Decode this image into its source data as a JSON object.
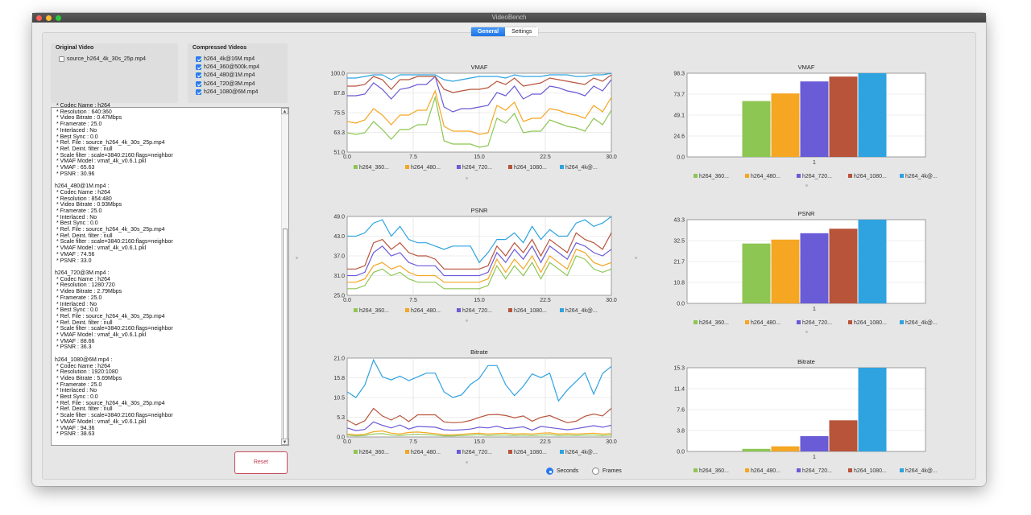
{
  "window": {
    "title": "VideoBench"
  },
  "tabs": [
    {
      "label": "General"
    },
    {
      "label": "Settings"
    }
  ],
  "original_video": {
    "title": "Original Video",
    "item": "source_h264_4k_30s_25p.mp4"
  },
  "compressed_videos": {
    "title": "Compressed Videos",
    "items": [
      {
        "label": "h264_4k@16M.mp4",
        "checked": true
      },
      {
        "label": "h264_360@500k.mp4",
        "checked": true
      },
      {
        "label": "h264_480@1M.mp4",
        "checked": true
      },
      {
        "label": "h264_720@3M.mp4",
        "checked": true
      },
      {
        "label": "h264_1080@6M.mp4",
        "checked": true
      }
    ]
  },
  "log": {
    "text": " * Codec Name : h264\n * Resolution : 640:360\n * Video Bitrate : 0.47Mbps\n * Framerate : 25.0\n * Interlaced : No\n * Best Sync : 0.0\n * Ref. File : source_h264_4k_30s_25p.mp4\n * Ref. Deint. filter : null\n * Scale filter : scale=3840:2160:flags=neighbor\n * VMAF Model : vmaf_4k_v0.6.1.pkl\n * VMAF : 65.63\n * PSNR : 30.96\n\nh264_480@1M.mp4 :\n * Codec Name : h264\n * Resolution : 854:480\n * Video Bitrate : 0.93Mbps\n * Framerate : 25.0\n * Interlaced : No\n * Best Sync : 0.0\n * Ref. File : source_h264_4k_30s_25p.mp4\n * Ref. Deint. filter : null\n * Scale filter : scale=3840:2160:flags=neighbor\n * VMAF Model : vmaf_4k_v0.6.1.pkl\n * VMAF : 74.56\n * PSNR : 33.0\n\nh264_720@3M.mp4 :\n * Codec Name : h264\n * Resolution : 1280:720\n * Video Bitrate : 2.79Mbps\n * Framerate : 25.0\n * Interlaced : No\n * Best Sync : 0.0\n * Ref. File : source_h264_4k_30s_25p.mp4\n * Ref. Deint. filter : null\n * Scale filter : scale=3840:2160:flags=neighbor\n * VMAF Model : vmaf_4k_v0.6.1.pkl\n * VMAF : 88.66\n * PSNR : 36.3\n\nh264_1080@6M.mp4 :\n * Codec Name : h264\n * Resolution : 1920:1080\n * Video Bitrate : 5.69Mbps\n * Framerate : 25.0\n * Interlaced : No\n * Best Sync : 0.0\n * Ref. File : source_h264_4k_30s_25p.mp4\n * Ref. Deint. filter : null\n * Scale filter : scale=3840:2160:flags=neighbor\n * VMAF Model : vmaf_4k_v0.6.1.pkl\n * VMAF : 94.36\n * PSNR : 38.63"
  },
  "reset_label": "Reset",
  "xaxis_mode": {
    "options": [
      {
        "label": "Seconds",
        "selected": true
      },
      {
        "label": "Frames",
        "selected": false
      }
    ]
  },
  "colors": {
    "h264_360": "#8dc652",
    "h264_480": "#f5a623",
    "h264_720": "#6a5bd6",
    "h264_1080": "#b8543a",
    "h264_4k": "#2ea3e0"
  },
  "legend": [
    "h264_360...",
    "h264_480...",
    "h264_720...",
    "h264_1080...",
    "h264_4k@..."
  ],
  "chart_data": [
    {
      "type": "line",
      "title": "VMAF",
      "x": [
        0,
        1,
        2,
        3,
        4,
        5,
        6,
        7,
        8,
        9,
        10,
        11,
        12,
        13,
        14,
        15,
        16,
        17,
        18,
        19,
        20,
        21,
        22,
        23,
        24,
        25,
        26,
        27,
        28,
        29,
        30
      ],
      "xticks": [
        "0.0",
        "7.5",
        "15.0",
        "22.5",
        "30.0"
      ],
      "yticks": [
        "51.0",
        "63.3",
        "75.5",
        "87.8",
        "100.0"
      ],
      "ylim": [
        51,
        100
      ],
      "series": [
        {
          "key": "h264_360",
          "values": [
            63,
            62,
            63,
            70,
            65,
            59,
            65,
            65,
            68,
            68,
            85,
            58,
            56,
            56,
            56,
            54,
            55,
            72,
            69,
            75,
            63,
            64,
            64,
            71,
            69,
            67,
            66,
            64,
            72,
            68,
            77
          ]
        },
        {
          "key": "h264_480",
          "values": [
            70,
            69,
            71,
            78,
            74,
            68,
            74,
            74,
            77,
            77,
            89,
            67,
            64,
            64,
            64,
            62,
            63,
            80,
            77,
            82,
            70,
            72,
            72,
            78,
            77,
            75,
            74,
            72,
            80,
            76,
            85
          ]
        },
        {
          "key": "h264_720",
          "values": [
            86,
            86,
            87,
            94,
            90,
            84,
            90,
            91,
            93,
            93,
            98,
            79,
            76,
            78,
            78,
            79,
            80,
            88,
            86,
            92,
            84,
            87,
            87,
            92,
            91,
            89,
            88,
            86,
            92,
            89,
            96
          ]
        },
        {
          "key": "h264_1080",
          "values": [
            92,
            92,
            93,
            98,
            96,
            90,
            96,
            96,
            98,
            98,
            98,
            90,
            88,
            89,
            90,
            90,
            91,
            95,
            93,
            97,
            92,
            93,
            94,
            97,
            96,
            95,
            94,
            93,
            97,
            95,
            99
          ]
        },
        {
          "key": "h264_4k",
          "values": [
            97,
            97,
            98,
            99,
            99,
            96,
            99,
            99,
            99,
            99,
            99,
            96,
            95,
            96,
            97,
            98,
            98,
            98,
            97,
            99,
            98,
            98,
            98,
            99,
            99,
            99,
            98,
            98,
            99,
            99,
            100
          ]
        }
      ]
    },
    {
      "type": "line",
      "title": "PSNR",
      "x": [
        0,
        1,
        2,
        3,
        4,
        5,
        6,
        7,
        8,
        9,
        10,
        11,
        12,
        13,
        14,
        15,
        16,
        17,
        18,
        19,
        20,
        21,
        22,
        23,
        24,
        25,
        26,
        27,
        28,
        29,
        30
      ],
      "xticks": [
        "0.0",
        "7.5",
        "15.0",
        "22.5",
        "30.0"
      ],
      "yticks": [
        "25.0",
        "31.0",
        "37.0",
        "43.0",
        "49.0"
      ],
      "ylim": [
        25,
        49
      ],
      "series": [
        {
          "key": "h264_360",
          "values": [
            27,
            27,
            28,
            32,
            33,
            31,
            32,
            30,
            29,
            29,
            29,
            27,
            27,
            27,
            27,
            27,
            28,
            34,
            30,
            34,
            31,
            35,
            30,
            35,
            33,
            31,
            37,
            36,
            33,
            32,
            33
          ]
        },
        {
          "key": "h264_480",
          "values": [
            29,
            29,
            30,
            34,
            35,
            33,
            34,
            32,
            31,
            31,
            31,
            29,
            29,
            29,
            29,
            29,
            30,
            36,
            32,
            36,
            33,
            37,
            32,
            37,
            35,
            33,
            39,
            38,
            35,
            34,
            35
          ]
        },
        {
          "key": "h264_720",
          "values": [
            31,
            31,
            32,
            38,
            40,
            37,
            38,
            35,
            34,
            34,
            34,
            31,
            31,
            31,
            31,
            31,
            32,
            38,
            35,
            39,
            36,
            40,
            35,
            40,
            38,
            36,
            41,
            40,
            38,
            37,
            39
          ]
        },
        {
          "key": "h264_1080",
          "values": [
            33,
            33,
            34,
            41,
            42,
            39,
            41,
            38,
            37,
            37,
            36,
            33,
            33,
            33,
            33,
            33,
            34,
            40,
            37,
            41,
            38,
            42,
            37,
            42,
            40,
            38,
            44,
            42,
            41,
            39,
            44
          ]
        },
        {
          "key": "h264_4k",
          "values": [
            43,
            43,
            44,
            47,
            48,
            43,
            46,
            42,
            41,
            41,
            40,
            39,
            40,
            40,
            40,
            35,
            38,
            42,
            42,
            44,
            41,
            46,
            42,
            45,
            43,
            43,
            47,
            48,
            46,
            47,
            49
          ]
        }
      ]
    },
    {
      "type": "line",
      "title": "Bitrate",
      "x": [
        0,
        1,
        2,
        3,
        4,
        5,
        6,
        7,
        8,
        9,
        10,
        11,
        12,
        13,
        14,
        15,
        16,
        17,
        18,
        19,
        20,
        21,
        22,
        23,
        24,
        25,
        26,
        27,
        28,
        29,
        30
      ],
      "xticks": [
        "0.0",
        "7.5",
        "15.0",
        "22.5",
        "30.0"
      ],
      "yticks": [
        "0.0",
        "5.3",
        "10.5",
        "15.8",
        "21.0"
      ],
      "ylim": [
        0,
        21
      ],
      "series": [
        {
          "key": "h264_360",
          "values": [
            0.5,
            0.3,
            0.4,
            0.8,
            0.9,
            0.5,
            0.4,
            0.6,
            0.7,
            0.6,
            0.5,
            0.3,
            0.3,
            0.4,
            0.5,
            0.6,
            0.4,
            0.5,
            0.5,
            0.4,
            0.5,
            0.4,
            0.5,
            0.6,
            0.4,
            0.5,
            0.4,
            0.5,
            0.5,
            0.4,
            0.5
          ]
        },
        {
          "key": "h264_480",
          "values": [
            0.8,
            0.6,
            0.7,
            1.4,
            1.6,
            1.0,
            0.8,
            1.2,
            1.3,
            1.1,
            0.9,
            0.6,
            0.6,
            0.7,
            0.9,
            1.0,
            0.8,
            0.9,
            1.0,
            0.8,
            0.9,
            0.8,
            1.0,
            1.1,
            0.8,
            0.9,
            0.8,
            0.9,
            1.0,
            0.8,
            0.9
          ]
        },
        {
          "key": "h264_720",
          "values": [
            2.4,
            1.7,
            2.0,
            4.0,
            3.1,
            2.4,
            3.2,
            2.1,
            2.8,
            2.7,
            2.6,
            1.9,
            1.8,
            1.9,
            2.1,
            2.6,
            2.4,
            2.9,
            2.2,
            2.4,
            2.7,
            1.8,
            2.8,
            2.5,
            2.2,
            1.9,
            2.2,
            2.6,
            3.0,
            2.6,
            3.1
          ]
        },
        {
          "key": "h264_1080",
          "values": [
            4.5,
            3.2,
            4.3,
            7.6,
            5.6,
            4.5,
            5.7,
            4.1,
            5.9,
            5.9,
            5.9,
            4.0,
            3.8,
            3.9,
            4.4,
            5.2,
            5.9,
            6.0,
            5.7,
            5.1,
            5.6,
            4.2,
            5.2,
            5.7,
            4.7,
            3.8,
            4.2,
            5.5,
            6.1,
            5.6,
            7.6
          ]
        },
        {
          "key": "h264_4k",
          "values": [
            12,
            10.5,
            13.8,
            20.5,
            16,
            15.2,
            16.2,
            15,
            16,
            17,
            17,
            12,
            10.5,
            11.2,
            14,
            15.6,
            19,
            19,
            13.9,
            11,
            13.5,
            16.8,
            15.8,
            17,
            9.6,
            12.5,
            14.8,
            17.1,
            11.4,
            16.9,
            18.8
          ]
        }
      ]
    },
    {
      "type": "bar",
      "title": "VMAF",
      "categories": [
        "1"
      ],
      "yticks": [
        "0.0",
        "24.6",
        "49.1",
        "73.7",
        "98.3"
      ],
      "ylim": [
        0,
        98.3
      ],
      "series": [
        {
          "key": "h264_360",
          "value": 65.63
        },
        {
          "key": "h264_480",
          "value": 74.56
        },
        {
          "key": "h264_720",
          "value": 88.66
        },
        {
          "key": "h264_1080",
          "value": 94.36
        },
        {
          "key": "h264_4k",
          "value": 98.3
        }
      ]
    },
    {
      "type": "bar",
      "title": "PSNR",
      "categories": [
        "1"
      ],
      "yticks": [
        "0.0",
        "10.8",
        "21.7",
        "32.5",
        "43.3"
      ],
      "ylim": [
        0,
        43.3
      ],
      "series": [
        {
          "key": "h264_360",
          "value": 30.96
        },
        {
          "key": "h264_480",
          "value": 33.0
        },
        {
          "key": "h264_720",
          "value": 36.3
        },
        {
          "key": "h264_1080",
          "value": 38.63
        },
        {
          "key": "h264_4k",
          "value": 43.3
        }
      ]
    },
    {
      "type": "bar",
      "title": "Bitrate",
      "categories": [
        "1"
      ],
      "yticks": [
        "0.0",
        "3.8",
        "7.6",
        "11.4",
        "15.3"
      ],
      "ylim": [
        0,
        15.3
      ],
      "series": [
        {
          "key": "h264_360",
          "value": 0.47
        },
        {
          "key": "h264_480",
          "value": 0.93
        },
        {
          "key": "h264_720",
          "value": 2.79
        },
        {
          "key": "h264_1080",
          "value": 5.69
        },
        {
          "key": "h264_4k",
          "value": 15.3
        }
      ]
    }
  ]
}
